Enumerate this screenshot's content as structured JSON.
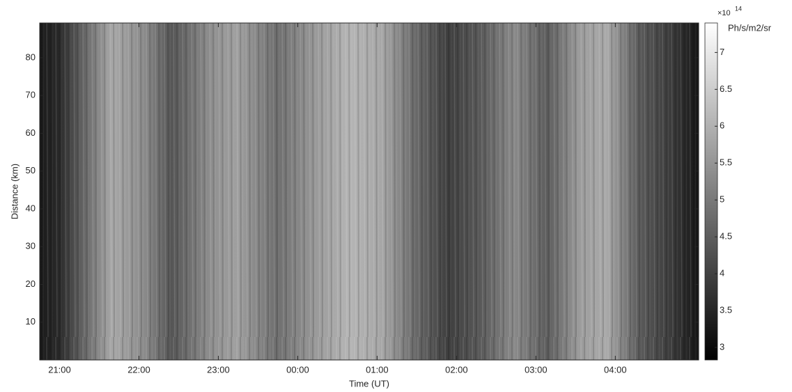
{
  "chart_data": {
    "type": "heatmap",
    "x_label": "Time (UT)",
    "y_label": "Distance (km)",
    "xlim": [
      20.75,
      29.05
    ],
    "xticks": [
      {
        "value": 21,
        "label": "21:00"
      },
      {
        "value": 22,
        "label": "22:00"
      },
      {
        "value": 23,
        "label": "23:00"
      },
      {
        "value": 24,
        "label": "00:00"
      },
      {
        "value": 25,
        "label": "01:00"
      },
      {
        "value": 26,
        "label": "02:00"
      },
      {
        "value": 27,
        "label": "03:00"
      },
      {
        "value": 28,
        "label": "04:00"
      }
    ],
    "ylim": [
      0,
      89.2
    ],
    "yticks": [
      10,
      20,
      30,
      40,
      50,
      60,
      70,
      80
    ],
    "colorbar": {
      "clim": [
        2.83,
        7.4
      ],
      "ticks": [
        3,
        3.5,
        4,
        4.5,
        5,
        5.5,
        6,
        6.5,
        7
      ],
      "scale_label": "×10",
      "scale_power": 14,
      "unit": "Ph/s/m2/sr"
    }
  }
}
